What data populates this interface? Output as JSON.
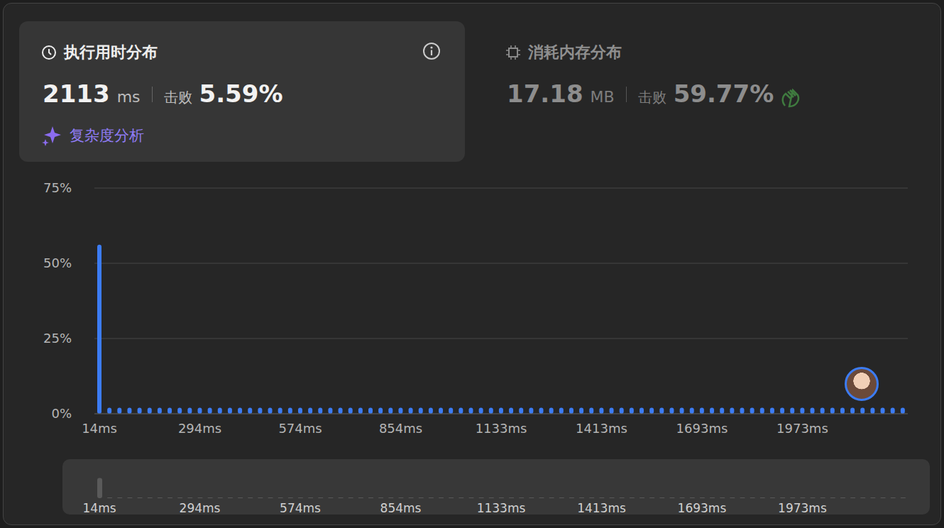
{
  "panels": {
    "runtime": {
      "title": "执行用时分布",
      "value": "2113",
      "unit": "ms",
      "beats_label": "击败",
      "beats": "5.59%",
      "link": "复杂度分析"
    },
    "memory": {
      "title": "消耗内存分布",
      "value": "17.18",
      "unit": "MB",
      "beats_label": "击败",
      "beats": "59.77%"
    }
  },
  "chart_data": {
    "type": "bar",
    "categories": [
      "14ms",
      null,
      null,
      null,
      null,
      null,
      null,
      null,
      null,
      null,
      "294ms",
      null,
      null,
      null,
      null,
      null,
      null,
      null,
      null,
      null,
      "574ms",
      null,
      null,
      null,
      null,
      null,
      null,
      null,
      null,
      null,
      "854ms",
      null,
      null,
      null,
      null,
      null,
      null,
      null,
      null,
      null,
      "1133ms",
      null,
      null,
      null,
      null,
      null,
      null,
      null,
      null,
      null,
      "1413ms",
      null,
      null,
      null,
      null,
      null,
      null,
      null,
      null,
      null,
      "1693ms",
      null,
      null,
      null,
      null,
      null,
      null,
      null,
      null,
      null,
      "1973ms",
      null,
      null,
      null,
      null,
      null,
      null,
      null,
      null,
      null,
      null
    ],
    "values": [
      56.2,
      2,
      2,
      2,
      2,
      2,
      2,
      2,
      2,
      2,
      2,
      2,
      2,
      2,
      2,
      2,
      2,
      2,
      2,
      2,
      2,
      2,
      2,
      2,
      2,
      2,
      2,
      2,
      2,
      2,
      2,
      2,
      2,
      2,
      2,
      2,
      2,
      2,
      2,
      2,
      2,
      2,
      2,
      2,
      2,
      2,
      2,
      2,
      2,
      2,
      2,
      2,
      2,
      2,
      2,
      2,
      2,
      2,
      2,
      2,
      2,
      2,
      2,
      2,
      2,
      2,
      2,
      2,
      2,
      2,
      2,
      2,
      2,
      2,
      2,
      2,
      2,
      2,
      2,
      2,
      2
    ],
    "color": "#3c7cf4",
    "ylim": [
      0,
      75
    ],
    "yticks": [
      {
        "value": 0,
        "label": "0%"
      },
      {
        "value": 25,
        "label": "25%"
      },
      {
        "value": 50,
        "label": "50%"
      },
      {
        "value": 75,
        "label": "75%"
      }
    ],
    "grid": true
  }
}
